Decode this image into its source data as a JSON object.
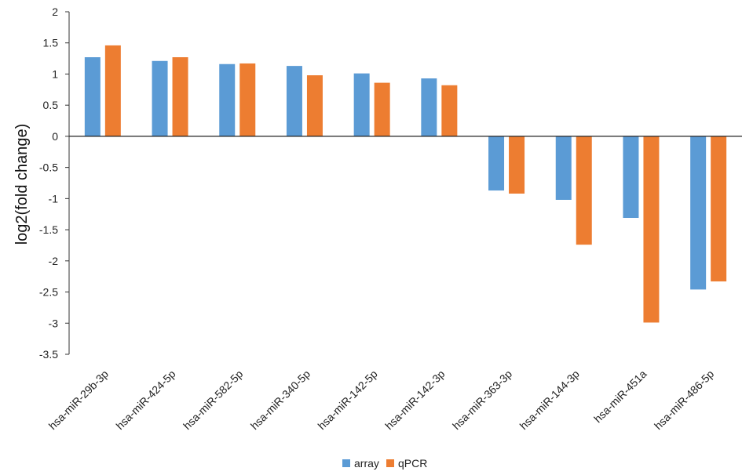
{
  "chart_data": {
    "type": "bar",
    "ylabel": "log2(fold change)",
    "xlabel": "",
    "ylim": [
      -3.5,
      2
    ],
    "yticks": [
      "2",
      "1.5",
      "1",
      "0.5",
      "0",
      "-0.5",
      "-1",
      "-1.5",
      "-2",
      "-2.5",
      "-3",
      "-3.5"
    ],
    "categories": [
      "hsa-miR-29b-3p",
      "hsa-miR-424-5p",
      "hsa-miR-582-5p",
      "hsa-miR-340-5p",
      "hsa-miR-142-5p",
      "hsa-miR-142-3p",
      "hsa-miR-363-3p",
      "hsa-miR-144-3p",
      "hsa-miR-451a",
      "hsa-miR-486-5p"
    ],
    "series": [
      {
        "name": "array",
        "color": "#5B9BD5",
        "values": [
          1.27,
          1.21,
          1.16,
          1.13,
          1.01,
          0.93,
          -0.87,
          -1.02,
          -1.31,
          -2.46
        ]
      },
      {
        "name": "qPCR",
        "color": "#ED7D31",
        "values": [
          1.46,
          1.27,
          1.17,
          0.98,
          0.86,
          0.82,
          -0.92,
          -1.74,
          -2.99,
          -2.33
        ]
      }
    ],
    "grid": false,
    "legend": "bottom"
  }
}
